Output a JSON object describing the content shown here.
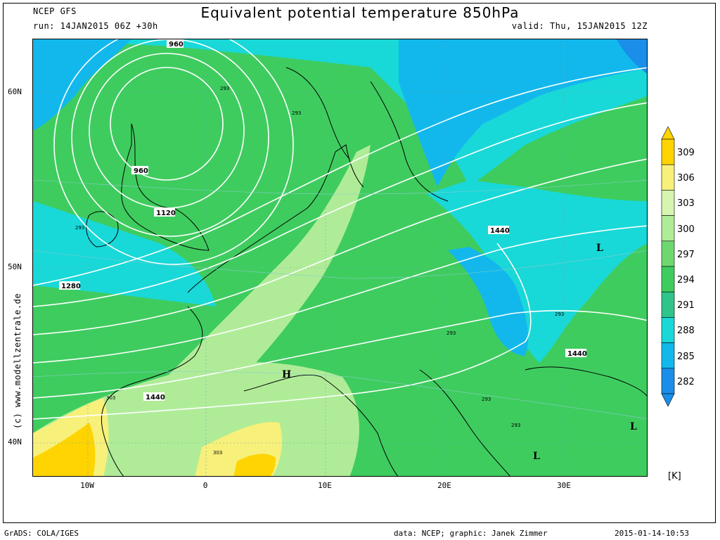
{
  "header": {
    "model": "NCEP GFS",
    "run": "run: 14JAN2015 06Z +30h",
    "title": "Equivalent potential temperature 850hPa",
    "valid": "valid: Thu, 15JAN2015 12Z"
  },
  "map": {
    "lat_labels": [
      "60N",
      "50N",
      "40N"
    ],
    "lon_labels": [
      "10W",
      "0",
      "10E",
      "20E",
      "30E"
    ],
    "pressure_labels": [
      "960",
      "960",
      "1120",
      "1280",
      "1440",
      "1440",
      "1440"
    ],
    "theta_labels": [
      "293",
      "293",
      "293",
      "293",
      "293",
      "293",
      "303",
      "303",
      "293"
    ],
    "pressure_centers": [
      "L",
      "H",
      "L",
      "L"
    ]
  },
  "colorbar": {
    "unit": "[K]",
    "levels": [
      "309",
      "306",
      "303",
      "300",
      "297",
      "294",
      "291",
      "288",
      "285",
      "282"
    ],
    "colors": [
      "#ffd400",
      "#f7f07a",
      "#d6f5b0",
      "#b0ec98",
      "#6ed870",
      "#3fcc5f",
      "#2ec48a",
      "#19d8d8",
      "#12b8ec",
      "#1a8ee8"
    ]
  },
  "credit": "(c) www.modellzentrale.de",
  "footer": {
    "left": "GrADS: COLA/IGES",
    "center": "data: NCEP; graphic: Janek Zimmer",
    "right": "2015-01-14-10:53"
  }
}
